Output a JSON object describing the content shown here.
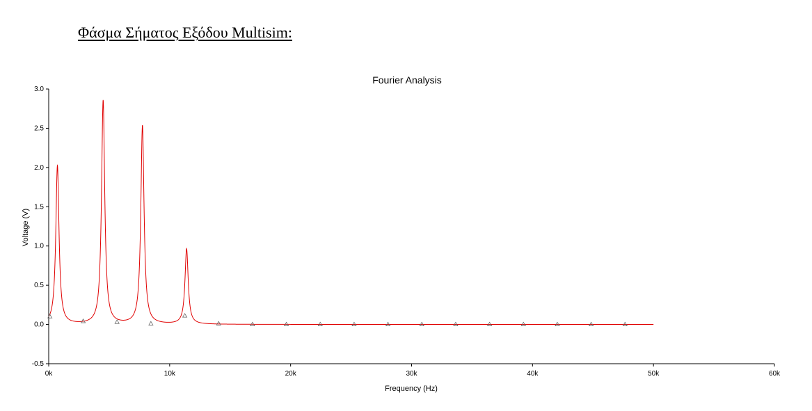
{
  "heading": "Φάσμα Σήματος Εξόδου Multisim:",
  "chart_data": {
    "type": "line",
    "title": "Fourier Analysis",
    "xlabel": "Frequency (Hz)",
    "ylabel": "Voltage (V)",
    "xlim": [
      0,
      60000
    ],
    "ylim": [
      -0.5,
      3.0
    ],
    "x_ticks": [
      0,
      10000,
      20000,
      30000,
      40000,
      50000,
      60000
    ],
    "x_tick_labels": [
      "0k",
      "10k",
      "20k",
      "30k",
      "40k",
      "50k",
      "60k"
    ],
    "y_ticks": [
      -0.5,
      0.0,
      0.5,
      1.0,
      1.5,
      2.0,
      2.5,
      3.0
    ],
    "y_tick_labels": [
      "-0.5",
      "0.0",
      "0.5",
      "1.0",
      "1.5",
      "2.0",
      "2.5",
      "3.0"
    ],
    "grid": false,
    "legend": "none",
    "series": [
      {
        "color": "#e00000",
        "x_range": [
          0,
          50000
        ],
        "baseline": 0.0,
        "peaks": [
          {
            "x": 720,
            "y": 2.02
          },
          {
            "x": 4500,
            "y": 2.85
          },
          {
            "x": 7750,
            "y": 2.53
          },
          {
            "x": 11400,
            "y": 0.96
          }
        ],
        "markers_x": [
          100,
          2850,
          5650,
          8450,
          11250,
          14050,
          16850,
          19650,
          22450,
          25250,
          28050,
          30850,
          33650,
          36450,
          39250,
          42050,
          44850,
          47650
        ],
        "markers_y": [
          0.1,
          0.04,
          0.03,
          0.01,
          0.11,
          0.01,
          0.0,
          0.0,
          0.0,
          0.0,
          0.0,
          0.0,
          0.0,
          0.0,
          0.0,
          0.0,
          0.0,
          0.0
        ]
      }
    ]
  }
}
